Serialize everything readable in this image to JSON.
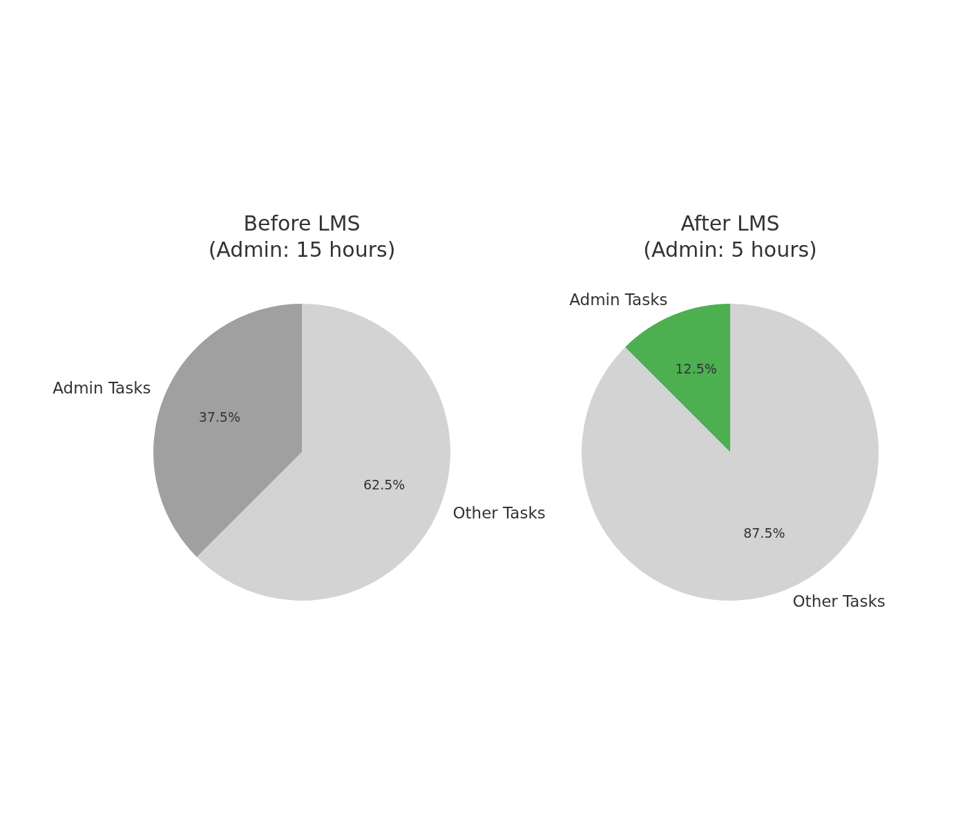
{
  "chart_data": [
    {
      "type": "pie",
      "title": "Before LMS",
      "subtitle": "(Admin: 15 hours)",
      "categories": [
        "Admin Tasks",
        "Other Tasks"
      ],
      "values": [
        37.5,
        62.5
      ],
      "value_labels": [
        "37.5%",
        "62.5%"
      ],
      "colors": [
        "#a0a0a0",
        "#d3d3d3"
      ],
      "legend": false
    },
    {
      "type": "pie",
      "title": "After LMS",
      "subtitle": "(Admin: 5 hours)",
      "categories": [
        "Admin Tasks",
        "Other Tasks"
      ],
      "values": [
        12.5,
        87.5
      ],
      "value_labels": [
        "12.5%",
        "87.5%"
      ],
      "colors": [
        "#4caf50",
        "#d3d3d3"
      ],
      "legend": false
    }
  ]
}
